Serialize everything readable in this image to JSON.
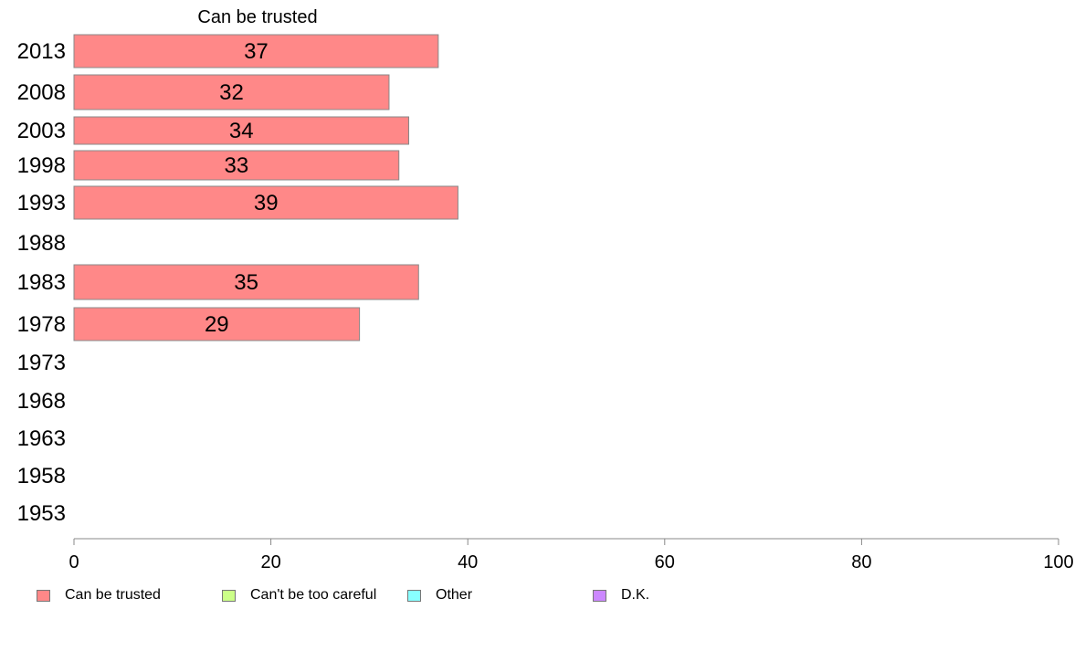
{
  "chart_data": {
    "type": "bar",
    "orientation": "horizontal",
    "title": "Can be trusted",
    "categories": [
      "2013",
      "2008",
      "2003",
      "1998",
      "1993",
      "1988",
      "1983",
      "1978",
      "1973",
      "1968",
      "1963",
      "1958",
      "1953"
    ],
    "series": [
      {
        "name": "Can be trusted",
        "values": [
          37,
          32,
          34,
          33,
          39,
          null,
          35,
          29,
          null,
          null,
          null,
          null,
          null
        ],
        "color": "#ff8888"
      }
    ],
    "xlim": [
      0,
      100
    ],
    "xticks": [
      0,
      20,
      40,
      60,
      80,
      100
    ],
    "grid": false,
    "legend_position": "bottom-left",
    "legend": [
      {
        "label": "Can be trusted",
        "color": "#ff8888"
      },
      {
        "label": "Can't be too careful",
        "color": "#ccff88"
      },
      {
        "label": "Other",
        "color": "#88ffff"
      },
      {
        "label": "D.K.",
        "color": "#cc88ff"
      }
    ]
  }
}
